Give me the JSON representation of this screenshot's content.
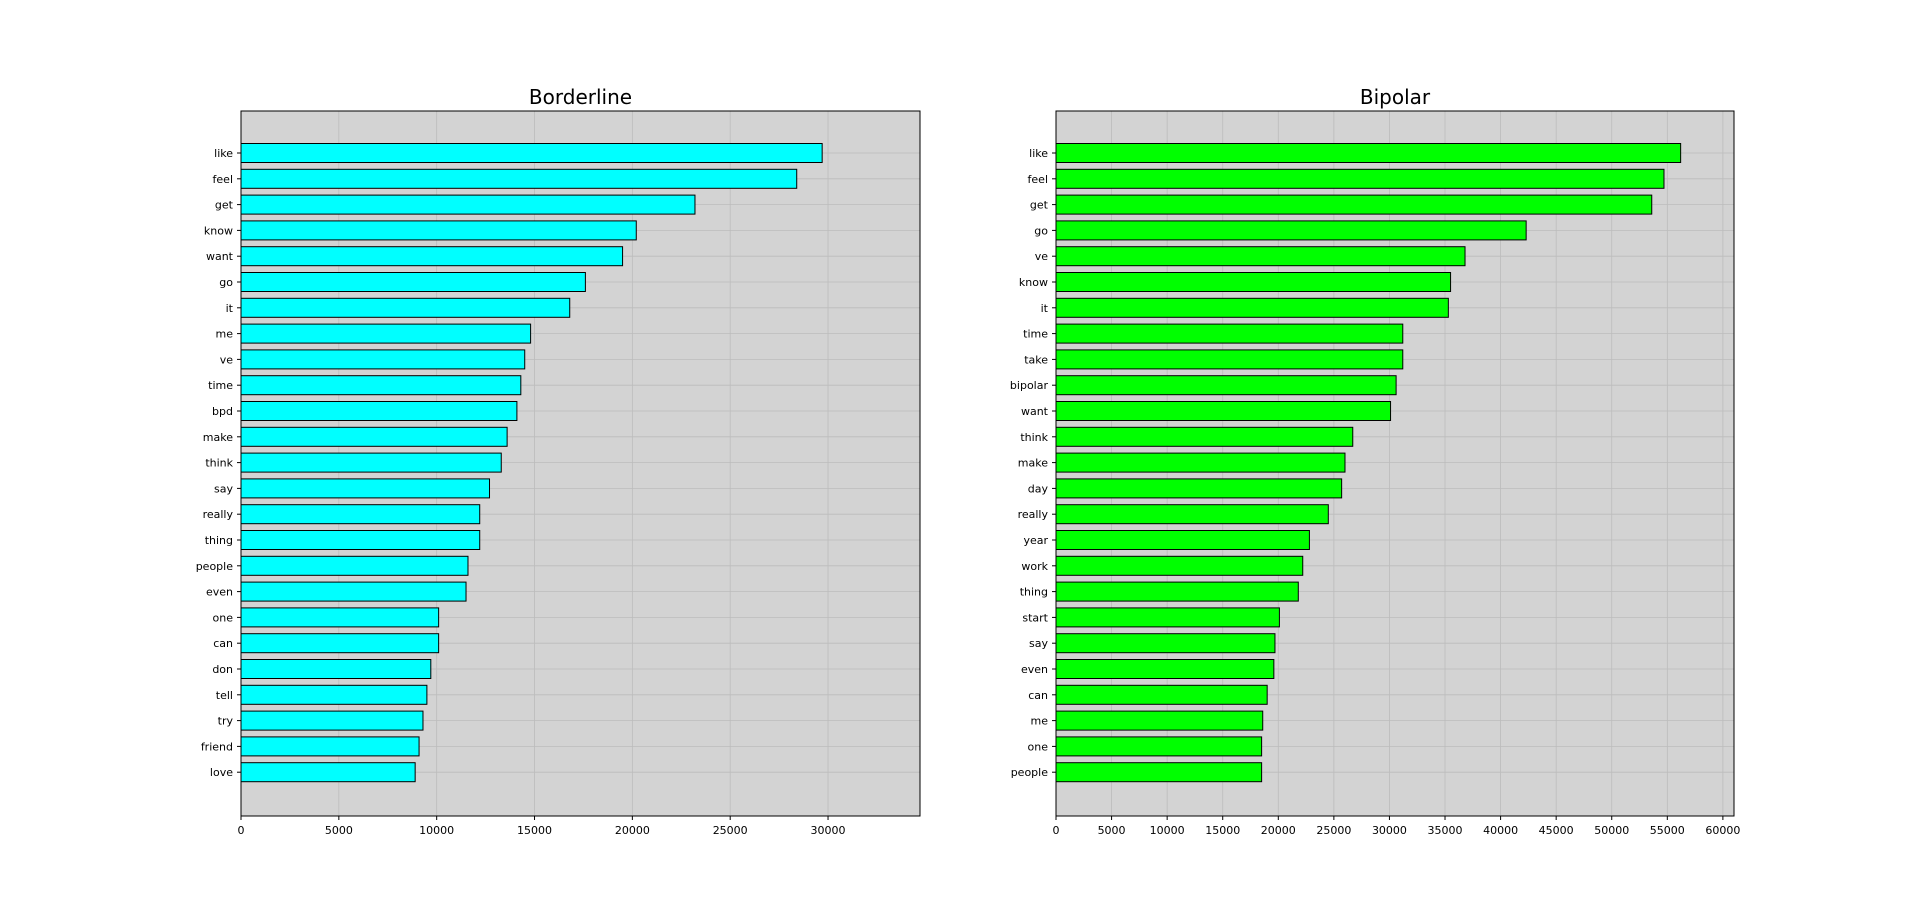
{
  "chart_data": [
    {
      "type": "bar",
      "orientation": "horizontal",
      "title": "Borderline",
      "xlabel": "",
      "ylabel": "",
      "categories": [
        "like",
        "feel",
        "get",
        "know",
        "want",
        "go",
        "it",
        "me",
        "ve",
        "time",
        "bpd",
        "make",
        "think",
        "say",
        "really",
        "thing",
        "people",
        "even",
        "one",
        "can",
        "don",
        "tell",
        "try",
        "friend",
        "love"
      ],
      "values": [
        29700,
        28400,
        23200,
        20200,
        19500,
        17600,
        16800,
        14800,
        14500,
        14300,
        14100,
        13600,
        13300,
        12700,
        12200,
        12200,
        11600,
        11500,
        10100,
        10100,
        9700,
        9500,
        9300,
        9100,
        8900
      ],
      "xlim": [
        0,
        34700
      ],
      "xticks": [
        "0",
        "5000",
        "10000",
        "15000",
        "20000",
        "25000",
        "30000"
      ],
      "bar_color": "#00ffff",
      "grid": true
    },
    {
      "type": "bar",
      "orientation": "horizontal",
      "title": "Bipolar",
      "xlabel": "",
      "ylabel": "",
      "categories": [
        "like",
        "feel",
        "get",
        "go",
        "ve",
        "know",
        "it",
        "time",
        "take",
        "bipolar",
        "want",
        "think",
        "make",
        "day",
        "really",
        "year",
        "work",
        "thing",
        "start",
        "say",
        "even",
        "can",
        "me",
        "one",
        "people"
      ],
      "values": [
        56200,
        54700,
        53600,
        42300,
        36800,
        35500,
        35300,
        31200,
        31200,
        30600,
        30100,
        26700,
        26000,
        25700,
        24500,
        22800,
        22200,
        21800,
        20100,
        19700,
        19600,
        19000,
        18600,
        18500,
        18500
      ],
      "xlim": [
        0,
        61000
      ],
      "xticks": [
        "0",
        "5000",
        "10000",
        "15000",
        "20000",
        "25000",
        "30000",
        "35000",
        "40000",
        "45000",
        "50000",
        "55000",
        "60000"
      ],
      "bar_color": "#00ff00",
      "grid": true
    }
  ]
}
